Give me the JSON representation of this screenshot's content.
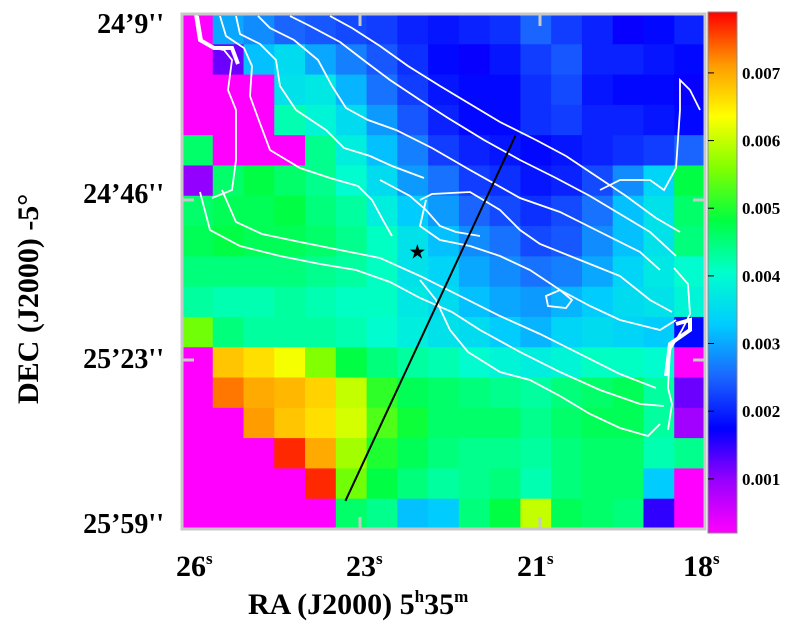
{
  "chart_data": {
    "type": "heatmap",
    "xlabel": "RA (J2000) 5h35m",
    "xlabel_main": "RA (J2000) 5",
    "xlabel_h": "h",
    "xlabel_mid": "35",
    "xlabel_m": "m",
    "ylabel": "DEC (J2000) -5°",
    "x_ticks": [
      {
        "label": "26",
        "sup": "s",
        "ra_s": 26
      },
      {
        "label": "23",
        "sup": "s",
        "ra_s": 23
      },
      {
        "label": "21",
        "sup": "s",
        "ra_s": 21
      },
      {
        "label": "18",
        "sup": "s",
        "ra_s": 18
      }
    ],
    "y_ticks": [
      "24’9''",
      "24’46''",
      "25’23''",
      "25’59''"
    ],
    "xlim": [
      26,
      18
    ],
    "ylim_arcsec": [
      9,
      119
    ],
    "colorbar": {
      "min": 0.0002,
      "max": 0.0079,
      "ticks": [
        "0.007",
        "0.006",
        "0.005",
        "0.004",
        "0.003",
        "0.002",
        "0.001"
      ],
      "tick_values": [
        0.007,
        0.006,
        0.005,
        0.004,
        0.003,
        0.002,
        0.001
      ],
      "colormap": [
        "#ff00ff",
        "#9900ff",
        "#0000ff",
        "#1a66ff",
        "#00ccff",
        "#00ffcc",
        "#00ff40",
        "#80ff00",
        "#ffff00",
        "#ff9900",
        "#ff0000"
      ]
    },
    "grid": false,
    "legend": "none",
    "star_marker": {
      "ra_s": 22.4,
      "dec_arcsec": 60
    },
    "cut_line": {
      "from": {
        "ra_s": 23.5,
        "dec_arcsec": 113
      },
      "to": {
        "ra_s": 20.9,
        "dec_arcsec": 35
      }
    },
    "map_nx": 17,
    "map_ny": 17,
    "map_values": [
      [
        null,
        0.003,
        0.0028,
        0.0025,
        0.0024,
        0.0023,
        0.0022,
        0.002,
        0.0019,
        0.002,
        0.0021,
        0.0025,
        0.0022,
        0.002,
        0.0017,
        0.0018,
        0.002
      ],
      [
        null,
        0.0012,
        0.0032,
        0.0035,
        0.003,
        0.0027,
        0.0024,
        0.0021,
        0.0018,
        0.0017,
        0.0019,
        0.0022,
        0.0024,
        0.002,
        0.002,
        0.0019,
        0.0018
      ],
      [
        null,
        null,
        null,
        0.0036,
        0.0037,
        0.0031,
        0.0026,
        0.0022,
        0.0019,
        0.0018,
        0.0018,
        0.0021,
        0.0023,
        0.0019,
        0.0018,
        0.0018,
        0.0017
      ],
      [
        null,
        null,
        null,
        0.0042,
        0.0039,
        0.0035,
        0.0029,
        0.0024,
        0.002,
        0.0018,
        0.0018,
        0.0021,
        0.0022,
        0.002,
        0.002,
        0.0019,
        0.0018
      ],
      [
        0.0046,
        null,
        null,
        null,
        0.0044,
        0.0038,
        0.0032,
        0.0027,
        0.0022,
        0.002,
        0.0019,
        0.0018,
        0.0019,
        0.002,
        0.0021,
        0.0022,
        0.0025
      ],
      [
        0.001,
        0.0046,
        0.0048,
        0.0046,
        0.0044,
        0.004,
        0.0035,
        0.0029,
        0.0026,
        0.0022,
        0.0021,
        0.0019,
        0.002,
        0.0023,
        0.0028,
        0.0034,
        0.0048
      ],
      [
        0.0046,
        0.0047,
        0.0047,
        0.0048,
        0.0045,
        0.0043,
        0.0038,
        0.0033,
        0.0029,
        0.0025,
        0.0023,
        0.0021,
        0.0023,
        0.0026,
        0.0032,
        0.0036,
        0.0046
      ],
      [
        0.0047,
        0.0048,
        0.0047,
        0.0047,
        0.0046,
        0.0044,
        0.0041,
        0.0036,
        0.0032,
        0.0028,
        0.0026,
        0.0023,
        0.0024,
        0.0028,
        0.0032,
        0.0036,
        0.0045
      ],
      [
        0.0045,
        0.0045,
        0.0045,
        0.0045,
        0.0044,
        0.0043,
        0.0041,
        0.0036,
        0.0034,
        0.003,
        0.0028,
        0.0026,
        0.0027,
        0.003,
        0.0034,
        0.0037,
        0.004
      ],
      [
        0.0043,
        0.0042,
        0.0042,
        0.0043,
        0.0042,
        0.0041,
        0.0041,
        0.0037,
        0.0035,
        0.0032,
        0.003,
        0.0029,
        0.0031,
        0.0033,
        0.0035,
        0.0036,
        0.0039
      ],
      [
        0.0055,
        0.0045,
        0.0043,
        0.0043,
        0.0043,
        0.0042,
        0.004,
        0.0038,
        0.0036,
        0.0035,
        0.0033,
        0.0031,
        0.0034,
        0.0035,
        0.0034,
        0.0033,
        0.0018
      ],
      [
        null,
        0.0068,
        0.0066,
        0.0063,
        0.0056,
        0.0048,
        0.0045,
        0.0043,
        0.0042,
        0.004,
        0.0039,
        0.0038,
        0.0039,
        0.0041,
        0.0041,
        0.004,
        null
      ],
      [
        null,
        0.0073,
        0.007,
        0.0069,
        0.0067,
        0.006,
        0.0051,
        0.0047,
        0.0046,
        0.0045,
        0.0044,
        0.0043,
        0.0045,
        0.0046,
        0.0047,
        0.0043,
        0.0012
      ],
      [
        null,
        null,
        0.0071,
        0.0068,
        0.0066,
        0.0061,
        0.0053,
        0.0049,
        0.0046,
        0.0046,
        0.0046,
        0.0044,
        0.0046,
        0.0047,
        0.0047,
        0.0043,
        0.0009
      ],
      [
        null,
        null,
        null,
        0.0077,
        0.007,
        0.0058,
        0.005,
        0.0047,
        0.0045,
        0.0044,
        0.0044,
        0.0043,
        0.0045,
        0.0046,
        0.0046,
        0.0042,
        0.0044
      ],
      [
        null,
        null,
        null,
        null,
        0.0077,
        0.0055,
        0.0048,
        0.0045,
        0.0043,
        0.0044,
        0.0045,
        0.0042,
        0.0045,
        0.0046,
        0.0046,
        0.0033,
        null
      ],
      [
        null,
        null,
        null,
        null,
        null,
        0.0046,
        0.0044,
        0.0032,
        0.0033,
        0.0045,
        0.0048,
        0.006,
        0.0047,
        0.0046,
        0.0045,
        0.0015,
        null
      ]
    ]
  }
}
